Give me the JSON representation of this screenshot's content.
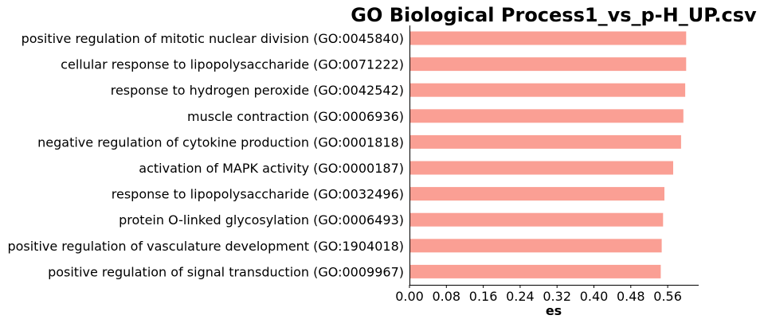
{
  "chart_data": {
    "type": "bar",
    "orientation": "horizontal",
    "title": "GO Biological Process1_vs_p-H_UP.csv",
    "xlabel": "es",
    "ylabel": "",
    "xlim": [
      0,
      0.6
    ],
    "xticks": [
      "0.00",
      "0.08",
      "0.16",
      "0.24",
      "0.32",
      "0.40",
      "0.48",
      "0.56"
    ],
    "grid": false,
    "bar_color": "#fa9f94",
    "categories": [
      "positive regulation of mitotic nuclear division (GO:0045840)",
      "cellular response to lipopolysaccharide (GO:0071222)",
      "response to hydrogen peroxide (GO:0042542)",
      "muscle contraction (GO:0006936)",
      "negative regulation of cytokine production (GO:0001818)",
      "activation of MAPK activity (GO:0000187)",
      "response to lipopolysaccharide (GO:0032496)",
      "protein O-linked glycosylation (GO:0006493)",
      "positive regulation of vasculature development (GO:1904018)",
      "positive regulation of signal transduction (GO:0009967)"
    ],
    "values": [
      0.6,
      0.6,
      0.598,
      0.594,
      0.589,
      0.572,
      0.553,
      0.55,
      0.547,
      0.545
    ]
  }
}
